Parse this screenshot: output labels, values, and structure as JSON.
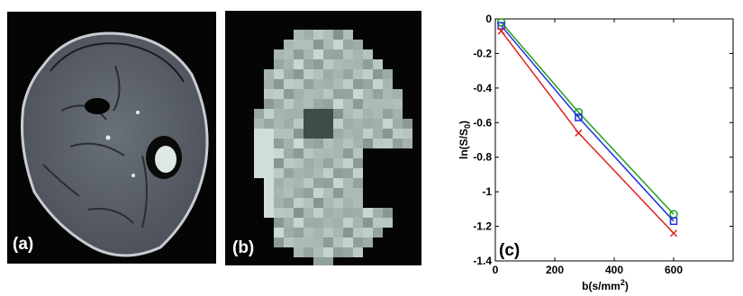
{
  "panels": {
    "a": {
      "label": "(a)"
    },
    "b": {
      "label": "(b)"
    },
    "c": {
      "label": "(c)"
    }
  },
  "chart_data": {
    "type": "line",
    "xlabel": "b(s/mm2)",
    "ylabel": "ln(S/S0)",
    "xlim": [
      0,
      800
    ],
    "ylim": [
      -1.4,
      0
    ],
    "xticks": [
      0,
      200,
      400,
      600
    ],
    "yticks": [
      0,
      -0.2,
      -0.4,
      -0.6,
      -0.8,
      -1,
      -1.2,
      -1.4
    ],
    "xtick_labels": [
      "0",
      "200",
      "400",
      "600"
    ],
    "ytick_labels": [
      "0",
      "-0.2",
      "-0.4",
      "-0.6",
      "-0.8",
      "-1",
      "-1.2",
      "-1.4"
    ],
    "grid": false,
    "x": [
      20,
      280,
      600
    ],
    "series": [
      {
        "color": "#20a020",
        "marker": "circle",
        "values": [
          -0.02,
          -0.54,
          -1.13
        ]
      },
      {
        "color": "#2030e0",
        "marker": "square",
        "values": [
          -0.04,
          -0.57,
          -1.17
        ]
      },
      {
        "color": "#e02020",
        "marker": "x",
        "values": [
          -0.07,
          -0.66,
          -1.24
        ]
      }
    ]
  }
}
